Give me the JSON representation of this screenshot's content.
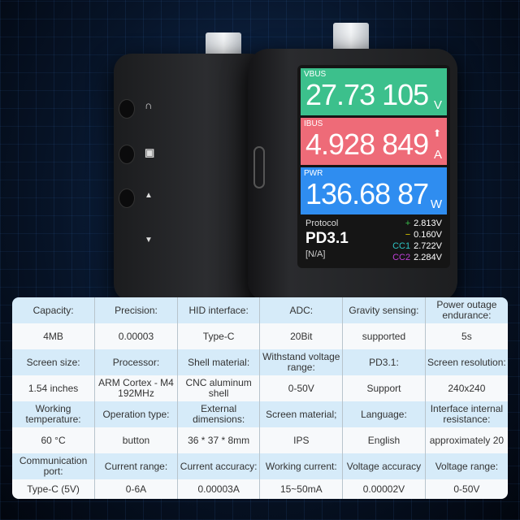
{
  "device": {
    "screen": {
      "vbus": {
        "label": "VBUS",
        "value": "27.73 105",
        "unit": "V",
        "color": "#3cc08c"
      },
      "ibus": {
        "label": "IBUS",
        "value": "4.928 849",
        "unit": "A",
        "color": "#ee6b78"
      },
      "pwr": {
        "label": "PWR",
        "value": "136.68 87",
        "unit": "W",
        "color": "#2f8df0"
      },
      "protocol_label": "Protocol",
      "protocol": "PD3.1",
      "protocol_status": "[N/A]",
      "readings": [
        {
          "label": "+",
          "value": "2.813V",
          "color": "#39c04a"
        },
        {
          "label": "−",
          "value": "0.160V",
          "color": "#e6d300"
        },
        {
          "label": "CC1",
          "value": "2.722V",
          "color": "#2ec4c4"
        },
        {
          "label": "CC2",
          "value": "2.284V",
          "color": "#c040d8"
        }
      ]
    },
    "button_icons": [
      "u-turn-icon",
      "square-icon",
      "triangle-up-icon",
      "triangle-down-icon"
    ]
  },
  "specs": [
    {
      "headers": [
        "Capacity:",
        "Precision:",
        "HID interface:",
        "ADC:",
        "Gravity sensing:",
        "Power outage endurance:"
      ],
      "values": [
        "4MB",
        "0.00003",
        "Type-C",
        "20Bit",
        "supported",
        "5s"
      ]
    },
    {
      "headers": [
        "Screen size:",
        "Processor:",
        "Shell material:",
        "Withstand voltage range:",
        "PD3.1:",
        "Screen resolution:"
      ],
      "values": [
        "1.54 inches",
        "ARM Cortex - M4 192MHz",
        "CNC aluminum shell",
        "0-50V",
        "Support",
        "240x240"
      ]
    },
    {
      "headers": [
        "Working temperature:",
        "Operation type:",
        "External dimensions:",
        "Screen material;",
        "Language:",
        "Interface internal resistance:"
      ],
      "values": [
        "60 °C",
        "button",
        "36 * 37 * 8mm",
        "IPS",
        "English",
        "approximately 20"
      ]
    },
    {
      "headers": [
        "Communication port:",
        "Current range:",
        "Current accuracy:",
        "Working current:",
        "Voltage accuracy",
        "Voltage range:"
      ],
      "values": [
        "Type-C (5V)",
        "0-6A",
        "0.00003A",
        "15~50mA",
        "0.00002V",
        "0-50V"
      ]
    }
  ]
}
